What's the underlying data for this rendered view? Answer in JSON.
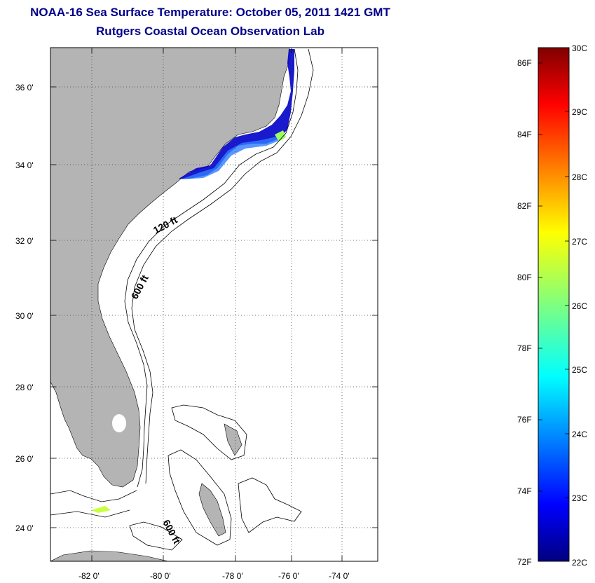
{
  "header": {
    "title": "NOAA-16 Sea Surface Temperature:  October 05, 2011 1421 GMT",
    "subtitle": "Rutgers Coastal Ocean Observation Lab"
  },
  "map": {
    "lat_labels": [
      "36 0'",
      "34 0'",
      "32 0'",
      "30 0'",
      "28 0'",
      "26 0'",
      "24 0'"
    ],
    "lon_labels": [
      "-82 0'",
      "-80 0'",
      "-78 0'",
      "-76 0'",
      "-74 0'"
    ],
    "depth_labels": [
      "120 ft",
      "600 ft",
      "600 ft"
    ],
    "land_color": "#b4b4b4",
    "cold_color": "#0000c8"
  },
  "colorbar": {
    "fahrenheit_labels": [
      "86F",
      "84F",
      "82F",
      "80F",
      "78F",
      "76F",
      "74F",
      "72F"
    ],
    "celsius_labels": [
      "30C",
      "29C",
      "28C",
      "27C",
      "26C",
      "25C",
      "24C",
      "23C",
      "22C"
    ]
  }
}
